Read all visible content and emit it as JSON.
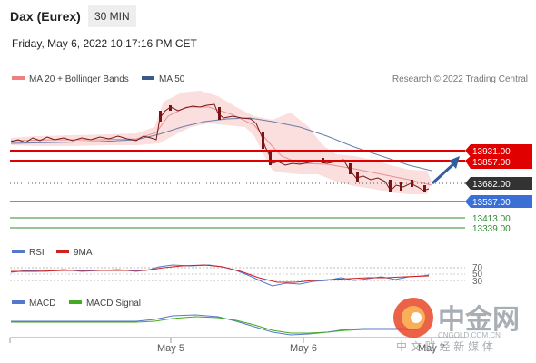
{
  "header": {
    "instrument": "Dax (Eurex)",
    "timeframe": "30 MIN",
    "datetime": "Friday, May 6, 2022 10:17:16 PM CET"
  },
  "legend_main": [
    {
      "label": "MA 20 + Bollinger Bands",
      "color": "#f08080"
    },
    {
      "label": "MA 50",
      "color": "#3a5a8c"
    }
  ],
  "copyright": "Research © 2022 Trading Central",
  "chart_data": [
    {
      "type": "line",
      "panel": "price",
      "x_labels": [
        "May 5",
        "May 6",
        "May 7"
      ],
      "y_range": [
        13300,
        14450
      ],
      "series": [
        {
          "name": "MA 20 + Bollinger Bands",
          "color": "#f08080",
          "values": [
            14030,
            14040,
            14040,
            14050,
            14055,
            14060,
            14080,
            14200,
            14300,
            14310,
            14260,
            14150,
            14020,
            13900,
            13830,
            13800,
            13760,
            13720,
            13690,
            13660
          ]
        },
        {
          "name": "MA 50",
          "color": "#3a5a8c",
          "values": [
            14020,
            14025,
            14030,
            14035,
            14040,
            14050,
            14080,
            14150,
            14200,
            14230,
            14240,
            14200,
            14130,
            14030,
            13950,
            13880,
            13830,
            13800,
            13780,
            13760
          ]
        },
        {
          "name": "Price",
          "color": "#8b1a1a",
          "values": [
            14030,
            14040,
            14050,
            14045,
            14060,
            14050,
            14100,
            14260,
            14300,
            14280,
            14250,
            14120,
            13880,
            13850,
            13870,
            13830,
            13760,
            13620,
            13630,
            13600,
            13640
          ]
        }
      ],
      "levels": [
        {
          "value": "13931.00",
          "color": "#e00000",
          "style": "solid",
          "tag": "#e00000"
        },
        {
          "value": "13857.00",
          "color": "#e00000",
          "style": "solid",
          "tag": "#e00000"
        },
        {
          "value": "13682.00",
          "color": "#444444",
          "style": "dotted",
          "tag": "#333333"
        },
        {
          "value": "13537.00",
          "color": "#3b6fd6",
          "style": "solid",
          "tag": "#3b6fd6"
        },
        {
          "value": "13413.00",
          "color": "#2e8b2e",
          "style": "solid",
          "tag": "none"
        },
        {
          "value": "13339.00",
          "color": "#2e8b2e",
          "style": "solid",
          "tag": "none"
        }
      ]
    },
    {
      "type": "line",
      "panel": "RSI",
      "y_ticks": [
        "70",
        "50",
        "30"
      ],
      "series": [
        {
          "name": "RSI",
          "color": "#5577cc",
          "values": [
            48,
            52,
            55,
            50,
            58,
            66,
            68,
            67,
            62,
            48,
            36,
            30,
            32,
            38,
            42,
            44,
            40,
            45,
            47,
            46
          ]
        },
        {
          "name": "9MA",
          "color": "#cc2222",
          "values": [
            50,
            51,
            53,
            53,
            56,
            62,
            66,
            67,
            64,
            55,
            44,
            36,
            33,
            35,
            39,
            42,
            42,
            43,
            45,
            46
          ]
        }
      ]
    },
    {
      "type": "line",
      "panel": "MACD",
      "series": [
        {
          "name": "MACD",
          "color": "#5577cc",
          "values": [
            0,
            2,
            4,
            10,
            25,
            40,
            38,
            20,
            -5,
            -25,
            -40,
            -45,
            -42,
            -35,
            -30,
            -28,
            -25,
            -22
          ]
        },
        {
          "name": "MACD Signal",
          "color": "#44aa22",
          "values": [
            0,
            1,
            3,
            8,
            18,
            30,
            34,
            26,
            8,
            -12,
            -30,
            -40,
            -42,
            -38,
            -33,
            -30,
            -27,
            -24
          ]
        }
      ]
    }
  ],
  "watermark": {
    "logo_text": "中金网",
    "site": "CNGOLD.COM.CN",
    "tagline": "中 文 财 经 新 媒 体"
  }
}
